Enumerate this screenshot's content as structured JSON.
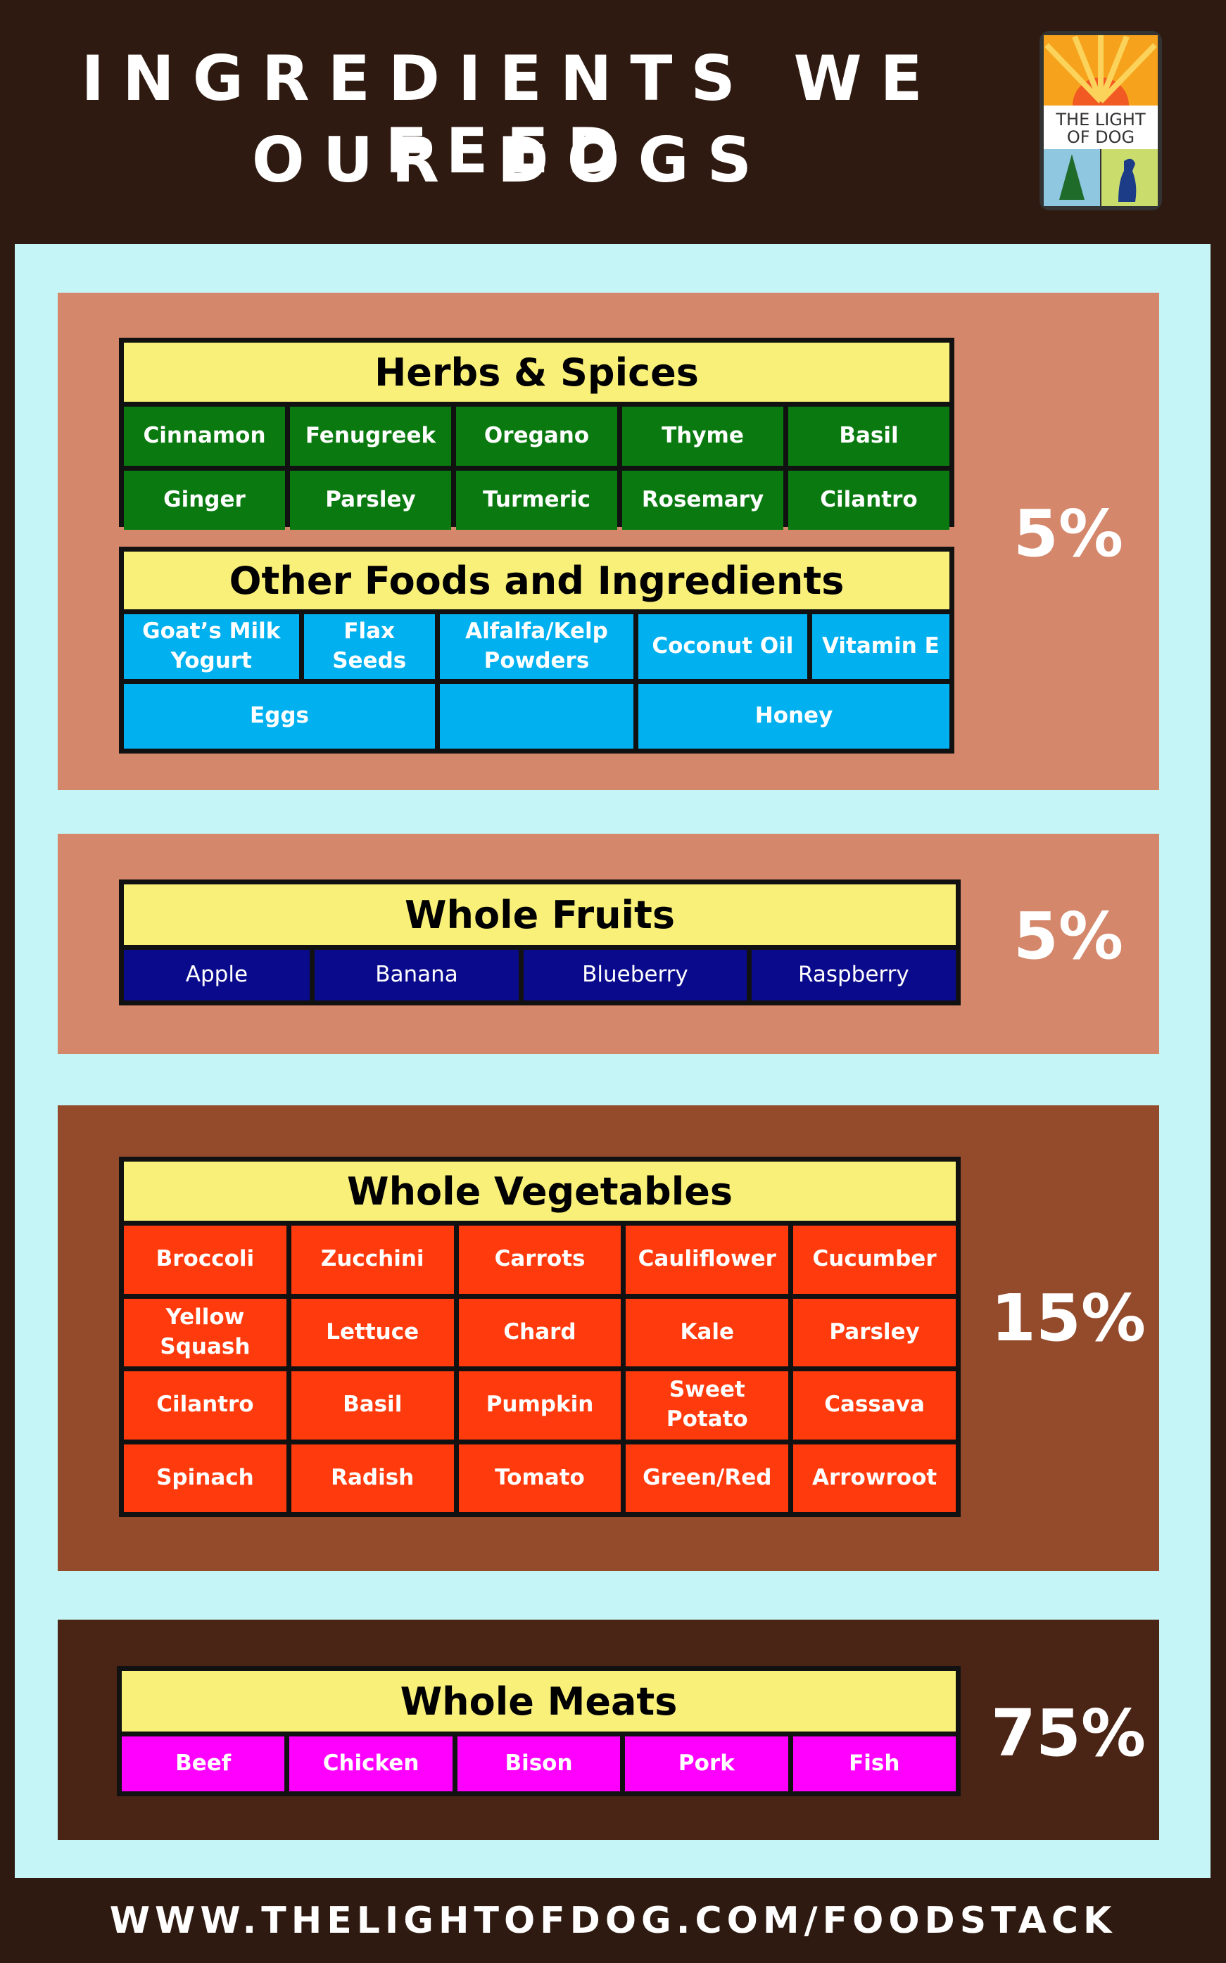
{
  "header": {
    "title": [
      "INGREDIENTS WE FEED",
      "OUR DOGS"
    ],
    "logo": [
      "THE LIGHT",
      "OF DOG"
    ]
  },
  "sections": [
    {
      "percent": "5%",
      "groups": [
        {
          "title": "Herbs & Spices",
          "items": [
            "Cinnamon",
            "Fenugreek",
            "Oregano",
            "Thyme",
            "Basil",
            "Ginger",
            "Parsley",
            "Turmeric",
            "Rosemary",
            "Cilantro"
          ]
        },
        {
          "title": "Other Foods and Ingredients",
          "items": [
            "Goat’s Milk Yogurt",
            "Flax Seeds",
            "Alfalfa/Kelp Powders",
            "Coconut Oil",
            "Vitamin E",
            "Eggs",
            "Honey"
          ]
        }
      ]
    },
    {
      "percent": "5%",
      "groups": [
        {
          "title": "Whole Fruits",
          "items": [
            "Apple",
            "Banana",
            "Blueberry",
            "Raspberry"
          ]
        }
      ]
    },
    {
      "percent": "15%",
      "groups": [
        {
          "title": "Whole Vegetables",
          "items": [
            "Broccoli",
            "Zucchini",
            "Carrots",
            "Cauliflower",
            "Cucumber",
            "Yellow Squash",
            "Lettuce",
            "Chard",
            "Kale",
            "Parsley",
            "Cilantro",
            "Basil",
            "Pumpkin",
            "Sweet Potato",
            "Cassava",
            "Spinach",
            "Radish",
            "Tomato",
            "Green/Red",
            "Arrowroot"
          ]
        }
      ]
    },
    {
      "percent": "75%",
      "groups": [
        {
          "title": "Whole Meats",
          "items": [
            "Beef",
            "Chicken",
            "Bison",
            "Pork",
            "Fish"
          ]
        }
      ]
    }
  ],
  "footer": {
    "url": "WWW.THELIGHTOFDOG.COM/FOODSTACK"
  }
}
